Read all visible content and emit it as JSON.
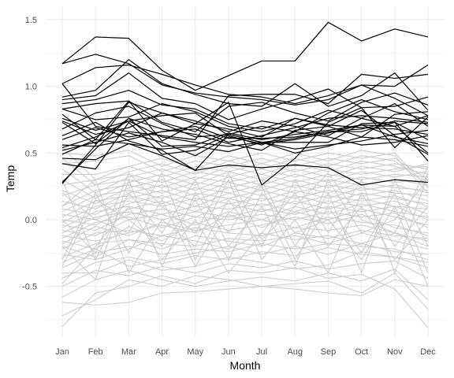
{
  "chart_data": {
    "type": "line",
    "title": "",
    "xlabel": "Month",
    "ylabel": "Temp",
    "categories": [
      "Jan",
      "Feb",
      "Mar",
      "Apr",
      "May",
      "Jun",
      "Jul",
      "Aug",
      "Sep",
      "Oct",
      "Nov",
      "Dec"
    ],
    "ylim": [
      -0.88,
      1.6
    ],
    "yticks": [
      -0.5,
      0.0,
      0.5,
      1.0,
      1.5
    ],
    "ytick_labels": [
      "-0.5",
      "0.0",
      "0.5",
      "1.0",
      "1.5"
    ],
    "grid": true,
    "legend": "none",
    "colors": {
      "highlight": "#000000",
      "background": "#cccccc",
      "grid": "#ebebeb"
    },
    "highlight_series": [
      {
        "values": [
          1.17,
          1.37,
          1.36,
          1.12,
          0.97,
          1.08,
          1.19,
          1.19,
          1.48,
          1.34,
          1.43,
          1.37
        ]
      },
      {
        "values": [
          1.17,
          1.24,
          1.17,
          1.01,
          0.95,
          0.92,
          0.9,
          0.86,
          0.9,
          1.01,
          0.91,
          0.78
        ]
      },
      {
        "values": [
          1.02,
          1.14,
          1.16,
          1.09,
          1.01,
          0.94,
          0.92,
          0.87,
          0.93,
          1.01,
          1.0,
          1.16
        ]
      },
      {
        "values": [
          1.02,
          0.7,
          0.66,
          0.63,
          0.6,
          0.93,
          0.94,
          0.94,
          0.87,
          1.09,
          1.06,
          1.09
        ]
      },
      {
        "values": [
          0.92,
          0.97,
          1.2,
          1.02,
          0.94,
          0.87,
          0.85,
          1.02,
          0.85,
          0.93,
          1.1,
          0.82
        ]
      },
      {
        "values": [
          0.9,
          0.93,
          1.1,
          0.91,
          0.87,
          0.75,
          0.83,
          0.9,
          0.98,
          0.84,
          0.85,
          0.92
        ]
      },
      {
        "values": [
          0.87,
          0.9,
          0.97,
          0.86,
          0.83,
          0.72,
          0.68,
          0.76,
          0.71,
          0.69,
          0.68,
          0.64
        ]
      },
      {
        "values": [
          0.83,
          0.87,
          0.89,
          0.73,
          0.66,
          0.85,
          0.88,
          0.8,
          0.74,
          0.88,
          0.95,
          0.86
        ]
      },
      {
        "values": [
          0.79,
          0.6,
          0.89,
          0.59,
          0.72,
          0.68,
          0.62,
          0.76,
          0.7,
          0.62,
          0.79,
          0.81
        ]
      },
      {
        "values": [
          0.76,
          0.67,
          0.74,
          0.78,
          0.8,
          0.63,
          0.56,
          0.66,
          0.62,
          0.56,
          0.58,
          0.63
        ]
      },
      {
        "values": [
          0.73,
          0.57,
          0.76,
          0.55,
          0.56,
          0.65,
          0.6,
          0.64,
          0.67,
          0.71,
          0.62,
          0.57
        ]
      },
      {
        "values": [
          0.63,
          0.73,
          0.59,
          0.52,
          0.37,
          0.64,
          0.58,
          0.58,
          0.58,
          0.72,
          0.73,
          0.6
        ]
      },
      {
        "values": [
          0.56,
          0.55,
          0.6,
          0.66,
          0.68,
          0.58,
          0.63,
          0.69,
          0.76,
          0.78,
          0.76,
          0.73
        ]
      },
      {
        "values": [
          0.54,
          0.62,
          0.74,
          0.62,
          0.58,
          0.55,
          0.58,
          0.53,
          0.56,
          0.59,
          0.64,
          0.67
        ]
      },
      {
        "values": [
          0.52,
          0.58,
          0.65,
          0.58,
          0.48,
          0.62,
          0.57,
          0.6,
          0.65,
          0.71,
          0.7,
          0.5
        ]
      },
      {
        "values": [
          0.49,
          0.6,
          0.57,
          0.53,
          0.55,
          0.51,
          0.58,
          0.5,
          0.55,
          0.62,
          0.6,
          0.55
        ]
      },
      {
        "values": [
          0.46,
          0.45,
          0.57,
          0.48,
          0.37,
          0.41,
          0.39,
          0.41,
          0.39,
          0.26,
          0.3,
          0.28
        ]
      },
      {
        "values": [
          0.42,
          0.38,
          0.73,
          0.49,
          0.52,
          0.64,
          0.58,
          0.61,
          0.66,
          0.66,
          0.73,
          0.44
        ]
      },
      {
        "values": [
          0.27,
          0.56,
          0.88,
          0.8,
          0.72,
          0.88,
          0.26,
          0.46,
          0.73,
          0.84,
          0.54,
          0.77
        ]
      },
      {
        "values": [
          0.28,
          0.53,
          0.76,
          0.68,
          0.64,
          0.57,
          0.52,
          0.67,
          0.7,
          0.82,
          0.63,
          0.49
        ]
      },
      {
        "values": [
          0.83,
          0.75,
          0.77,
          0.87,
          0.81,
          0.7,
          0.66,
          0.72,
          0.82,
          0.76,
          0.87,
          0.7
        ]
      },
      {
        "values": [
          0.68,
          0.8,
          0.85,
          0.72,
          0.62,
          0.64,
          0.7,
          0.66,
          0.8,
          0.9,
          0.81,
          0.75
        ]
      },
      {
        "values": [
          0.6,
          0.69,
          0.62,
          0.66,
          0.7,
          0.61,
          0.61,
          0.62,
          0.66,
          0.68,
          0.74,
          0.72
        ]
      },
      {
        "values": [
          0.74,
          0.64,
          0.69,
          0.8,
          0.74,
          0.66,
          0.74,
          0.7,
          0.63,
          0.76,
          0.7,
          0.78
        ]
      }
    ],
    "background_series_note": "",
    "background_series": [
      {
        "values": [
          -0.8,
          -0.55,
          -0.5,
          -0.42,
          -0.48,
          -0.38,
          -0.4,
          -0.36,
          -0.44,
          -0.41,
          -0.52,
          -0.81
        ]
      },
      {
        "values": [
          -0.72,
          -0.6,
          -0.45,
          -0.5,
          -0.42,
          -0.45,
          -0.5,
          -0.48,
          -0.46,
          -0.55,
          -0.4,
          -0.67
        ]
      },
      {
        "values": [
          -0.62,
          -0.64,
          -0.62,
          -0.55,
          -0.54,
          -0.52,
          -0.5,
          -0.52,
          -0.55,
          -0.57,
          -0.45,
          -0.5
        ]
      },
      {
        "values": [
          -0.58,
          -0.45,
          -0.38,
          -0.45,
          -0.5,
          -0.46,
          -0.43,
          -0.46,
          -0.4,
          -0.46,
          -0.37,
          -0.6
        ]
      },
      {
        "values": [
          -0.5,
          -0.38,
          -0.42,
          -0.35,
          -0.4,
          -0.33,
          -0.36,
          -0.31,
          -0.37,
          -0.33,
          -0.31,
          -0.44
        ]
      },
      {
        "values": [
          -0.44,
          -0.32,
          -0.28,
          -0.33,
          -0.27,
          -0.3,
          -0.24,
          -0.27,
          -0.21,
          -0.26,
          -0.28,
          -0.36
        ]
      },
      {
        "values": [
          -0.4,
          -0.4,
          -0.3,
          -0.38,
          -0.35,
          -0.28,
          -0.32,
          -0.37,
          -0.34,
          -0.24,
          -0.28,
          -0.32
        ]
      },
      {
        "values": [
          -0.36,
          -0.25,
          -0.2,
          -0.26,
          -0.22,
          -0.24,
          -0.18,
          -0.22,
          -0.18,
          -0.2,
          -0.22,
          -0.3
        ]
      },
      {
        "values": [
          -0.32,
          -0.22,
          -0.35,
          -0.3,
          -0.25,
          -0.2,
          -0.26,
          -0.2,
          -0.26,
          -0.18,
          -0.24,
          -0.26
        ]
      },
      {
        "values": [
          -0.28,
          -0.18,
          -0.15,
          -0.18,
          -0.2,
          -0.14,
          -0.16,
          -0.12,
          -0.18,
          -0.1,
          -0.16,
          -0.22
        ]
      },
      {
        "values": [
          -0.26,
          -0.3,
          -0.22,
          -0.12,
          -0.16,
          -0.22,
          -0.1,
          -0.15,
          -0.12,
          -0.18,
          -0.1,
          -0.2
        ]
      },
      {
        "values": [
          -0.22,
          -0.1,
          -0.08,
          -0.12,
          -0.06,
          -0.1,
          -0.12,
          -0.06,
          -0.08,
          -0.04,
          -0.1,
          -0.16
        ]
      },
      {
        "values": [
          -0.2,
          -0.28,
          -0.15,
          -0.22,
          -0.12,
          -0.16,
          -0.2,
          -0.1,
          -0.14,
          -0.08,
          -0.12,
          -0.14
        ]
      },
      {
        "values": [
          -0.18,
          -0.05,
          -0.12,
          -0.02,
          -0.08,
          -0.04,
          0.0,
          -0.06,
          0.02,
          -0.02,
          -0.04,
          -0.12
        ]
      },
      {
        "values": [
          -0.16,
          -0.22,
          -0.05,
          -0.16,
          -0.02,
          -0.08,
          -0.04,
          0.02,
          -0.03,
          0.04,
          -0.06,
          -0.1
        ]
      },
      {
        "values": [
          -0.14,
          -0.02,
          0.02,
          -0.06,
          0.02,
          0.0,
          0.04,
          0.0,
          0.06,
          0.02,
          0.05,
          -0.06
        ]
      },
      {
        "values": [
          -0.12,
          -0.16,
          -0.1,
          -0.04,
          -0.1,
          0.04,
          -0.06,
          0.06,
          0.0,
          0.08,
          0.02,
          -0.04
        ]
      },
      {
        "values": [
          -0.1,
          0.02,
          0.06,
          0.0,
          0.06,
          0.02,
          0.08,
          0.04,
          0.1,
          0.06,
          0.1,
          0.0
        ]
      },
      {
        "values": [
          -0.08,
          -0.12,
          0.0,
          0.04,
          -0.04,
          0.06,
          0.0,
          0.1,
          0.04,
          0.12,
          0.06,
          0.02
        ]
      },
      {
        "values": [
          -0.06,
          0.06,
          0.1,
          0.04,
          0.1,
          0.08,
          0.12,
          0.06,
          0.14,
          0.1,
          0.14,
          0.04
        ]
      },
      {
        "values": [
          -0.04,
          -0.08,
          0.04,
          0.08,
          0.02,
          0.12,
          0.06,
          0.14,
          0.08,
          0.16,
          0.1,
          0.08
        ]
      },
      {
        "values": [
          -0.02,
          0.1,
          0.14,
          0.1,
          0.16,
          0.12,
          0.16,
          0.12,
          0.18,
          0.14,
          0.18,
          0.1
        ]
      },
      {
        "values": [
          0.0,
          -0.04,
          0.08,
          0.14,
          0.06,
          0.16,
          0.1,
          0.18,
          0.12,
          0.2,
          0.16,
          0.12
        ]
      },
      {
        "values": [
          0.02,
          0.14,
          0.18,
          0.12,
          0.2,
          0.16,
          0.22,
          0.16,
          0.22,
          0.18,
          0.22,
          0.14
        ]
      },
      {
        "values": [
          0.04,
          0.0,
          0.12,
          0.18,
          0.1,
          0.2,
          0.14,
          0.22,
          0.16,
          0.24,
          0.2,
          0.18
        ]
      },
      {
        "values": [
          0.06,
          0.18,
          0.22,
          0.16,
          0.24,
          0.2,
          0.26,
          0.2,
          0.26,
          0.22,
          0.26,
          0.2
        ]
      },
      {
        "values": [
          0.08,
          0.04,
          0.16,
          0.22,
          0.14,
          0.24,
          0.18,
          0.26,
          0.2,
          0.28,
          0.24,
          0.22
        ]
      },
      {
        "values": [
          0.1,
          0.22,
          0.26,
          0.2,
          0.28,
          0.24,
          0.3,
          0.24,
          0.3,
          0.26,
          0.3,
          0.26
        ]
      },
      {
        "values": [
          0.14,
          0.08,
          0.2,
          0.26,
          0.18,
          0.28,
          0.22,
          0.3,
          0.24,
          0.32,
          0.28,
          0.3
        ]
      },
      {
        "values": [
          0.18,
          0.26,
          0.3,
          0.24,
          0.32,
          0.28,
          0.34,
          0.28,
          0.34,
          0.3,
          0.34,
          0.32
        ]
      },
      {
        "values": [
          0.22,
          0.12,
          0.24,
          0.3,
          0.22,
          0.32,
          0.26,
          0.34,
          0.28,
          0.36,
          0.32,
          0.36
        ]
      },
      {
        "values": [
          0.26,
          0.3,
          0.34,
          0.28,
          0.36,
          0.32,
          0.38,
          0.32,
          0.38,
          0.34,
          0.38,
          0.4
        ]
      },
      {
        "values": [
          0.3,
          0.16,
          0.28,
          0.34,
          0.26,
          0.36,
          0.3,
          0.38,
          0.32,
          0.4,
          0.36,
          0.42
        ]
      },
      {
        "values": [
          0.34,
          0.34,
          0.4,
          0.32,
          0.4,
          0.36,
          0.42,
          0.36,
          0.42,
          0.38,
          0.42,
          0.38
        ]
      },
      {
        "values": [
          0.38,
          0.2,
          0.32,
          0.38,
          0.3,
          0.4,
          0.34,
          0.42,
          0.36,
          0.44,
          0.4,
          0.34
        ]
      },
      {
        "values": [
          0.42,
          0.44,
          0.48,
          0.36,
          0.44,
          0.4,
          0.46,
          0.4,
          0.46,
          0.42,
          0.46,
          0.3
        ]
      },
      {
        "values": [
          0.46,
          0.26,
          0.36,
          0.42,
          0.34,
          0.44,
          0.38,
          0.46,
          0.4,
          0.48,
          0.44,
          0.26
        ]
      },
      {
        "values": [
          0.5,
          0.48,
          0.52,
          0.4,
          0.48,
          0.44,
          0.5,
          0.44,
          0.5,
          0.46,
          0.5,
          0.24
        ]
      },
      {
        "values": [
          0.54,
          0.3,
          0.4,
          0.46,
          0.38,
          0.48,
          0.42,
          0.5,
          0.44,
          0.52,
          0.48,
          0.2
        ]
      },
      {
        "values": [
          -0.48,
          -0.2,
          0.1,
          -0.3,
          0.0,
          -0.4,
          -0.1,
          0.2,
          -0.2,
          0.1,
          -0.3,
          0.0
        ]
      },
      {
        "values": [
          -0.3,
          0.2,
          -0.25,
          0.15,
          -0.35,
          0.05,
          0.25,
          -0.3,
          0.1,
          -0.25,
          0.2,
          -0.4
        ]
      },
      {
        "values": [
          0.3,
          -0.3,
          0.2,
          -0.1,
          0.3,
          -0.2,
          0.1,
          -0.35,
          0.3,
          -0.1,
          0.0,
          0.3
        ]
      },
      {
        "values": [
          0.1,
          0.3,
          -0.4,
          0.0,
          -0.2,
          0.3,
          -0.3,
          0.0,
          -0.4,
          0.2,
          -0.2,
          0.1
        ]
      },
      {
        "values": [
          -0.2,
          -0.45,
          0.3,
          -0.35,
          0.2,
          -0.1,
          0.3,
          -0.2,
          0.2,
          -0.4,
          0.3,
          -0.2
        ]
      },
      {
        "values": [
          0.2,
          0.0,
          -0.1,
          0.35,
          -0.3,
          0.15,
          -0.2,
          0.3,
          -0.1,
          0.3,
          -0.4,
          0.35
        ]
      },
      {
        "values": [
          -0.35,
          0.15,
          0.0,
          -0.2,
          0.15,
          -0.3,
          0.2,
          -0.1,
          0.0,
          -0.3,
          0.1,
          -0.5
        ]
      },
      {
        "values": [
          0.0,
          -0.25,
          0.35,
          0.1,
          -0.1,
          0.35,
          -0.15,
          0.1,
          0.35,
          0.0,
          -0.1,
          0.4
        ]
      }
    ]
  }
}
